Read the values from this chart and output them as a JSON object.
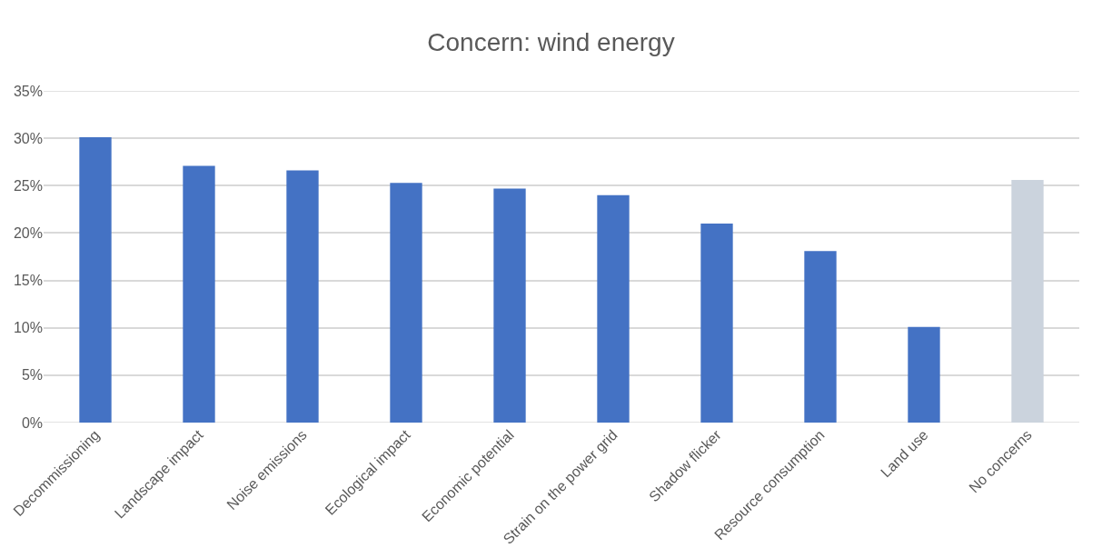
{
  "chart_data": {
    "type": "bar",
    "title": "Concern: wind energy",
    "categories": [
      "Decommissioning",
      "Landscape impact",
      "Noise emissions",
      "Ecological impact",
      "Economic potential",
      "Strain on the power grid",
      "Shadow flicker",
      "Resource consumption",
      "Land use",
      "No concerns"
    ],
    "values": [
      30.1,
      27.1,
      26.6,
      25.3,
      24.7,
      24.0,
      21.0,
      18.1,
      10.1,
      25.6
    ],
    "colors": [
      "#4472c4",
      "#4472c4",
      "#4472c4",
      "#4472c4",
      "#4472c4",
      "#4472c4",
      "#4472c4",
      "#4472c4",
      "#4472c4",
      "#cbd3dd"
    ],
    "ylim": [
      0,
      35
    ],
    "yticks": [
      {
        "value": 0,
        "label": "0%"
      },
      {
        "value": 5,
        "label": "5%"
      },
      {
        "value": 10,
        "label": "10%"
      },
      {
        "value": 15,
        "label": "15%"
      },
      {
        "value": 20,
        "label": "20%"
      },
      {
        "value": 25,
        "label": "25%"
      },
      {
        "value": 30,
        "label": "30%"
      },
      {
        "value": 35,
        "label": "35%"
      }
    ],
    "grid": "y"
  }
}
